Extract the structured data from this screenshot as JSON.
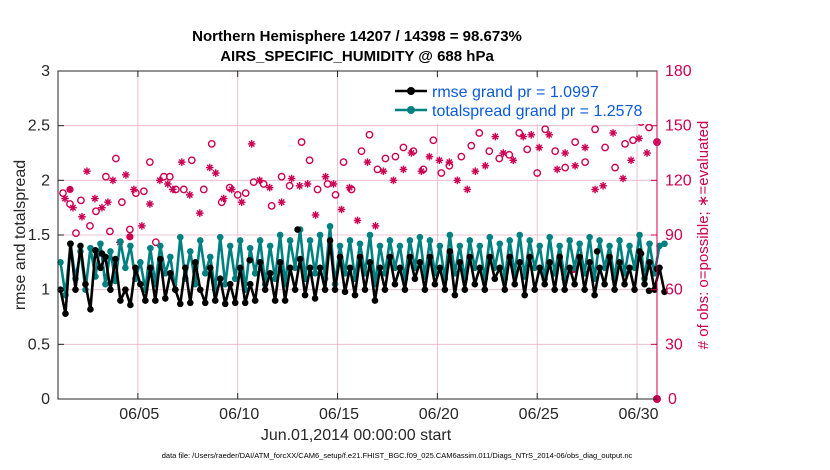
{
  "chart_data": {
    "type": "line",
    "title": "Northern Hemisphere 14207 / 14398 = 98.673%",
    "subtitle": "AIRS_SPECIFIC_HUMIDITY @ 688 hPa",
    "xlabel": "Jun.01,2014 00:00:00 start",
    "ylabel": "rmse and totalspread",
    "ylabel_right": "# of obs: o=possible; ∗=evaluated",
    "xlim": [
      1,
      31
    ],
    "ylim": [
      0,
      3
    ],
    "ylim_right": [
      0,
      180
    ],
    "x_ticks": [
      5,
      10,
      15,
      20,
      25,
      30
    ],
    "x_tick_labels": [
      "06/05",
      "06/10",
      "06/15",
      "06/20",
      "06/25",
      "06/30"
    ],
    "y_ticks": [
      "0",
      "0.5",
      "1",
      "1.5",
      "2",
      "2.5",
      "3"
    ],
    "y_ticks_right": [
      "0",
      "30",
      "60",
      "90",
      "120",
      "150",
      "180"
    ],
    "legend": {
      "position": "top-right",
      "entries": [
        "rmse grand pr = 1.0997",
        "totalspread grand pr = 1.2578"
      ]
    },
    "footnote": "data file: /Users/raeder/DAI/ATM_forcXX/CAM6_setup/f.e21.FHIST_BGC.f09_025.CAM6assim.011/Diags_NTrS_2014-06/obs_diag_output.nc",
    "colors": {
      "rmse": "#000000",
      "spread": "#008080",
      "obs": "#cc0052",
      "grid": "#e6b3c6"
    },
    "series": [
      {
        "name": "rmse",
        "axis": "left",
        "x_start": 1.125,
        "x_step": 0.25,
        "values": [
          1.0,
          0.78,
          1.42,
          1.0,
          1.4,
          1.05,
          0.82,
          1.36,
          1.2,
          1.3,
          1.0,
          1.28,
          0.9,
          1.0,
          0.86,
          1.2,
          1.05,
          0.9,
          1.2,
          0.9,
          1.28,
          0.92,
          1.15,
          1.0,
          0.87,
          1.2,
          0.88,
          1.25,
          1.0,
          0.88,
          1.2,
          0.9,
          1.1,
          0.87,
          1.05,
          0.88,
          1.2,
          0.88,
          1.05,
          0.9,
          1.25,
          1.0,
          1.15,
          0.9,
          1.25,
          0.9,
          1.2,
          1.0,
          1.28,
          0.95,
          1.2,
          0.92,
          1.2,
          1.0,
          1.45,
          1.0,
          1.3,
          0.98,
          1.2,
          0.95,
          1.3,
          1.0,
          1.25,
          0.9,
          1.2,
          1.0,
          1.3,
          1.05,
          1.2,
          1.0,
          1.3,
          1.1,
          1.25,
          1.0,
          1.3,
          1.05,
          1.2,
          1.0,
          1.35,
          0.95,
          1.25,
          1.0,
          1.3,
          1.05,
          1.2,
          1.0,
          1.3,
          1.1,
          1.2,
          1.0,
          1.3,
          1.05,
          1.25,
          0.95,
          1.3,
          1.0,
          1.2,
          1.05,
          1.25,
          1.0,
          1.3,
          1.0,
          1.2,
          1.05,
          1.3,
          1.0,
          1.25,
          0.95,
          1.2,
          1.05,
          1.3,
          1.0,
          1.25,
          1.05,
          1.2,
          1.0,
          1.35,
          1.05,
          1.25,
          1.0,
          1.2,
          0.98
        ],
        "markers": [
          {
            "x": 1.62,
            "y": 1.42
          },
          {
            "x": 3.2,
            "y": 1.33
          },
          {
            "x": 10.6,
            "y": 1.27
          },
          {
            "x": 13.0,
            "y": 1.55
          },
          {
            "x": 28.0,
            "y": 1.35
          },
          {
            "x": 30.2,
            "y": 1.33
          },
          {
            "x": 30.6,
            "y": 0.99
          },
          {
            "x": 31.0,
            "y": 1.19
          }
        ]
      },
      {
        "name": "totalspread",
        "axis": "left",
        "x_start": 1.125,
        "x_step": 0.25,
        "values": [
          1.25,
          0.95,
          1.42,
          1.1,
          1.35,
          1.0,
          1.38,
          1.12,
          1.42,
          1.05,
          1.35,
          1.08,
          1.44,
          1.2,
          1.4,
          1.1,
          1.25,
          1.0,
          1.38,
          1.05,
          1.4,
          1.15,
          1.3,
          1.0,
          1.48,
          1.1,
          1.35,
          1.05,
          1.45,
          1.15,
          1.3,
          1.0,
          1.48,
          1.05,
          1.4,
          1.1,
          1.45,
          1.0,
          1.38,
          1.15,
          1.45,
          1.05,
          1.4,
          1.1,
          1.5,
          1.05,
          1.45,
          1.2,
          1.55,
          1.1,
          1.45,
          1.15,
          1.5,
          1.1,
          1.58,
          1.05,
          1.4,
          1.15,
          1.45,
          1.1,
          1.42,
          1.15,
          1.5,
          1.05,
          1.4,
          1.15,
          1.45,
          1.2,
          1.4,
          1.1,
          1.45,
          1.2,
          1.48,
          1.12,
          1.45,
          1.15,
          1.4,
          1.1,
          1.5,
          1.15,
          1.4,
          1.1,
          1.45,
          1.2,
          1.4,
          1.1,
          1.48,
          1.2,
          1.42,
          1.1,
          1.45,
          1.15,
          1.5,
          1.12,
          1.45,
          1.2,
          1.4,
          1.1,
          1.48,
          1.15,
          1.4,
          1.1,
          1.45,
          1.2,
          1.42,
          1.15,
          1.48,
          1.1,
          1.45,
          1.2,
          1.4,
          1.1,
          1.45,
          1.15,
          1.4,
          1.2,
          1.5,
          1.1,
          1.42,
          1.15,
          1.4,
          1.42
        ]
      },
      {
        "name": "obs possible (o)",
        "axis": "right",
        "x": [
          1.25,
          1.6,
          1.9,
          2.15,
          2.6,
          2.9,
          3.4,
          3.6,
          3.9,
          4.2,
          4.6,
          4.9,
          5.3,
          5.6,
          5.9,
          6.3,
          6.6,
          6.9,
          7.3,
          7.7,
          8.3,
          8.7,
          9.2,
          9.6,
          10.0,
          10.4,
          10.8,
          11.3,
          11.7,
          12.2,
          12.6,
          13.2,
          13.6,
          14.0,
          14.5,
          14.9,
          15.3,
          15.7,
          16.2,
          16.6,
          17.0,
          17.4,
          17.9,
          18.3,
          18.8,
          19.3,
          19.8,
          20.2,
          20.6,
          21.2,
          21.7,
          22.1,
          22.6,
          23.1,
          23.6,
          24.1,
          24.5,
          25.0,
          25.4,
          25.9,
          26.4,
          26.9,
          27.4,
          27.9,
          28.4,
          28.9,
          29.4,
          29.8,
          30.2,
          30.6,
          31.0
        ],
        "values": [
          113,
          107,
          91,
          109,
          95,
          103,
          122,
          92,
          132,
          108,
          93,
          113,
          114,
          130,
          86,
          122,
          122,
          115,
          115,
          131,
          115,
          140,
          108,
          116,
          112,
          113,
          119,
          118,
          106,
          122,
          117,
          141,
          131,
          115,
          118,
          112,
          130,
          115,
          136,
          145,
          126,
          132,
          133,
          138,
          136,
          126,
          142,
          124,
          128,
          133,
          139,
          146,
          136,
          132,
          134,
          146,
          137,
          124,
          148,
          136,
          127,
          141,
          130,
          148,
          138,
          127,
          140,
          142,
          152,
          149,
          141
        ],
        "markers": [
          {
            "x": 1.6,
            "y": 115
          },
          {
            "x": 4.6,
            "y": 89
          },
          {
            "x": 26.8,
            "y": 71
          }
        ]
      },
      {
        "name": "obs evaluated (∗)",
        "axis": "right",
        "x": [
          1.35,
          1.75,
          2.2,
          2.45,
          2.85,
          3.2,
          3.5,
          3.75,
          4.1,
          4.4,
          4.8,
          5.2,
          5.6,
          6.1,
          6.5,
          6.75,
          7.2,
          7.6,
          8.1,
          8.6,
          8.9,
          9.3,
          9.7,
          10.2,
          10.7,
          11.1,
          11.6,
          12.2,
          12.7,
          13.1,
          13.5,
          13.9,
          14.4,
          14.8,
          15.2,
          15.6,
          16.0,
          16.5,
          16.9,
          17.3,
          17.8,
          18.3,
          18.7,
          19.2,
          19.6,
          20.1,
          20.6,
          21.0,
          21.5,
          21.9,
          22.4,
          22.9,
          23.3,
          23.8,
          24.3,
          24.7,
          25.1,
          25.6,
          26.0,
          26.4,
          26.9,
          27.4,
          27.9,
          28.3,
          28.8,
          29.3,
          29.7,
          30.1,
          30.5,
          31.0
        ],
        "values": [
          110,
          105,
          100,
          125,
          110,
          105,
          108,
          120,
          86,
          123,
          115,
          95,
          107,
          120,
          118,
          115,
          130,
          112,
          102,
          127,
          124,
          110,
          115,
          108,
          140,
          120,
          116,
          108,
          121,
          117,
          118,
          101,
          122,
          118,
          104,
          116,
          98,
          130,
          95,
          125,
          120,
          126,
          135,
          125,
          133,
          131,
          130,
          120,
          115,
          125,
          128,
          144,
          135,
          131,
          144,
          145,
          138,
          145,
          126,
          135,
          128,
          138,
          115,
          117,
          146,
          121,
          131,
          143,
          135,
          141
        ]
      }
    ]
  }
}
